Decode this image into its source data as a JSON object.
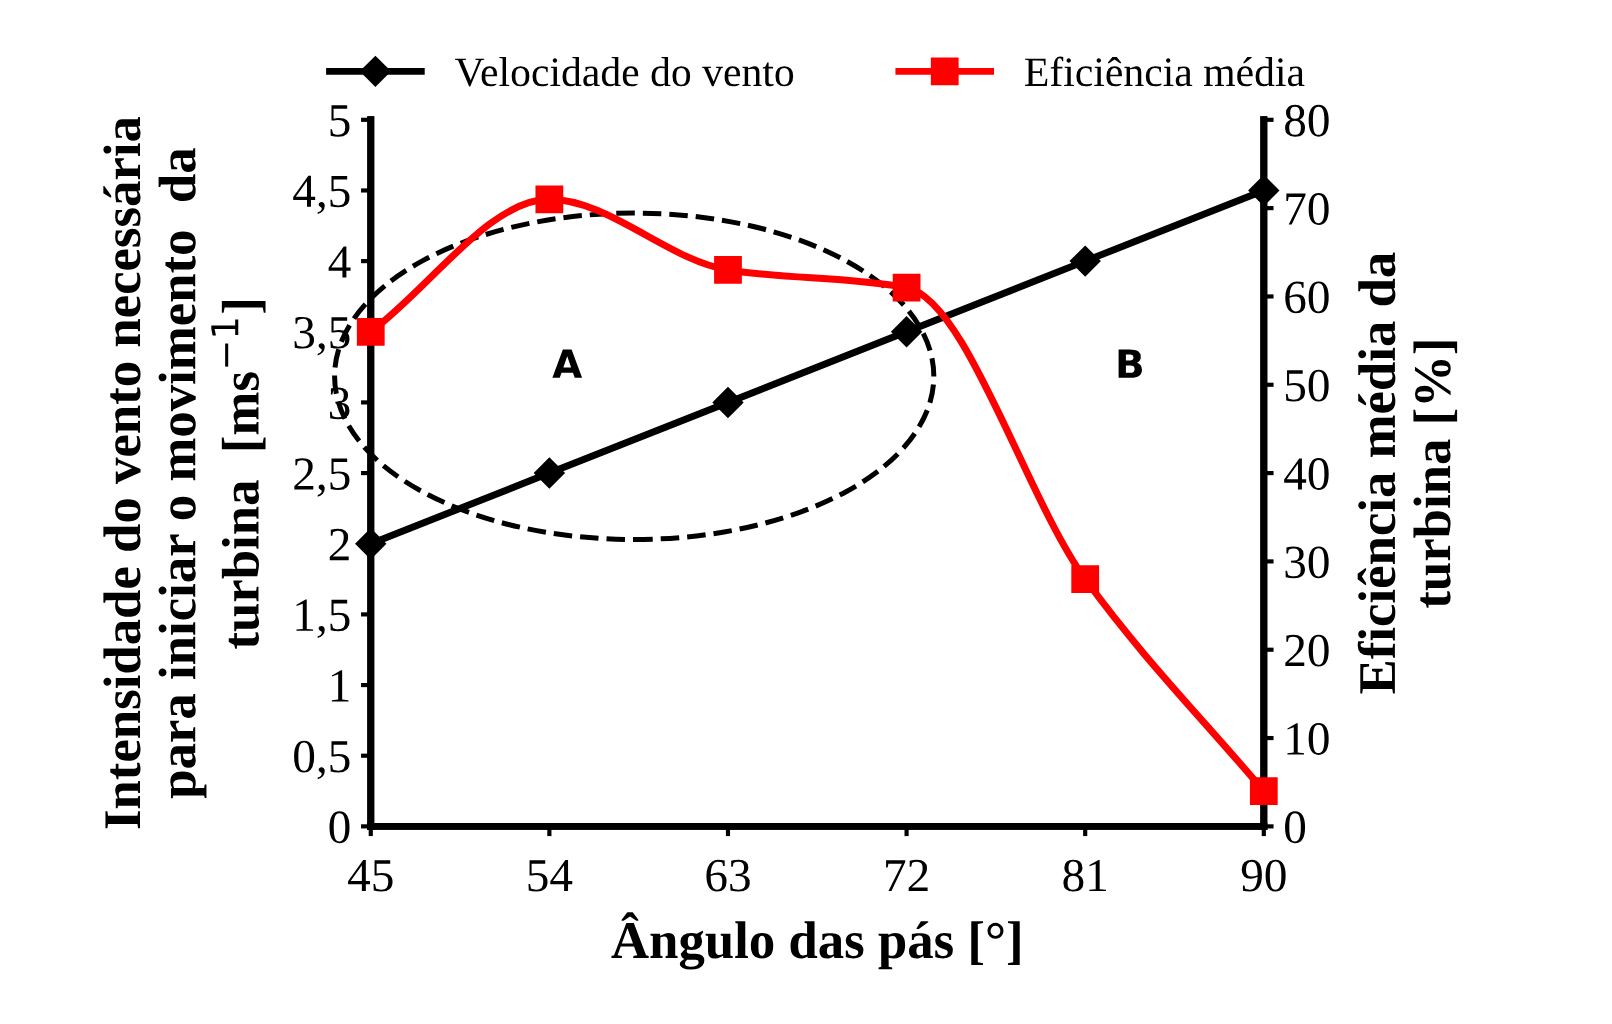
{
  "chart_data": {
    "type": "line",
    "xlabel": "Ângulo das pás [°]",
    "ylabel": "Intensidade do vento necessária\npara iniciar o movimento  da\nturbina  [ms$^{−1}$]",
    "y2label": "Eficiência média da\nturbina [%]",
    "x": [
      45,
      54,
      63,
      72,
      81,
      90
    ],
    "series": [
      {
        "name": "Velocidade do vento",
        "color": "#000000",
        "marker": "diamond",
        "values": [
          2,
          2.5,
          3,
          3.5,
          4,
          4.5
        ]
      },
      {
        "name": "Eficiência média",
        "color": "#ff0000",
        "marker": "square",
        "axis": "y2",
        "values": [
          56,
          71,
          63,
          61,
          28,
          4
        ]
      }
    ],
    "xlim": [
      45,
      90
    ],
    "xticks": [
      45,
      54,
      63,
      72,
      81,
      90
    ],
    "ylim": [
      0,
      5
    ],
    "yticks": [
      0,
      {
        "value": 0.5,
        "label": "0,5"
      },
      1,
      {
        "value": 1.5,
        "label": "1,5"
      },
      2,
      {
        "value": 2.5,
        "label": "2,5"
      },
      3,
      {
        "value": 3.5,
        "label": "3,5"
      },
      4,
      {
        "value": 4.5,
        "label": "4,5"
      },
      5
    ],
    "y2lim": [
      0,
      80
    ],
    "y2ticks": [
      0,
      10,
      20,
      30,
      40,
      50,
      60,
      70,
      80
    ],
    "annotations": [
      "A",
      "B"
    ],
    "legend": "top",
    "grid": false
  }
}
